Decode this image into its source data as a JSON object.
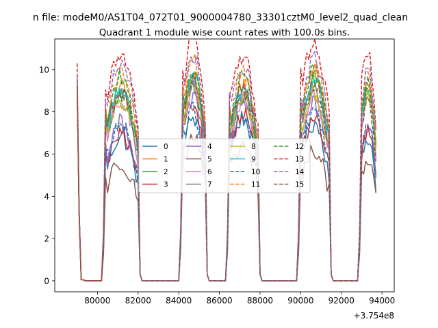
{
  "chart_data": {
    "type": "line",
    "suptitle": "n file: modeM0/AS1T04_072T01_9000004780_33301cztM0_level2_quad_clean",
    "title": "Quadrant 1 module wise count rates with 100.0s bins.",
    "xlabel": "",
    "ylabel": "",
    "x_offset_label": "+3.754e8",
    "xlim": [
      77900,
      94600
    ],
    "ylim": [
      -0.52,
      11.45
    ],
    "xticks": [
      80000,
      82000,
      84000,
      86000,
      88000,
      90000,
      92000,
      94000
    ],
    "xtick_labels": [
      "80000",
      "82000",
      "84000",
      "86000",
      "88000",
      "90000",
      "92000",
      "94000"
    ],
    "yticks": [
      0,
      2,
      4,
      6,
      8,
      10
    ],
    "ytick_labels": [
      "0",
      "2",
      "4",
      "6",
      "8",
      "10"
    ],
    "legend": {
      "position": "center",
      "columns": 4,
      "entries": [
        "0",
        "1",
        "2",
        "3",
        "4",
        "5",
        "6",
        "7",
        "8",
        "9",
        "10",
        "11",
        "12",
        "13",
        "14",
        "15"
      ]
    },
    "segments": [
      {
        "start": 79000,
        "end": 79300,
        "kind": "peak"
      },
      {
        "start": 80300,
        "end": 82000,
        "kind": "plateau",
        "fade_end": 82100
      },
      {
        "start": 84100,
        "end": 85300,
        "kind": "plateau",
        "fade_end": 85400
      },
      {
        "start": 86400,
        "end": 87900,
        "kind": "plateau",
        "fade_end": 88000
      },
      {
        "start": 89900,
        "end": 91400,
        "kind": "plateau",
        "fade_end": 91500
      },
      {
        "start": 92900,
        "end": 93700,
        "kind": "plateau",
        "fade_end": 93700
      }
    ],
    "gap_value": 0,
    "series": [
      {
        "name": "0",
        "color": "#1f77b4",
        "dash": "solid",
        "start_peak": 9.5,
        "levels": [
          6.2,
          7.0,
          7.0,
          6.8,
          6.2
        ]
      },
      {
        "name": "1",
        "color": "#ff7f0e",
        "dash": "solid",
        "start_peak": 9.4,
        "levels": [
          8.3,
          9.0,
          8.4,
          9.0,
          8.6
        ]
      },
      {
        "name": "2",
        "color": "#2ca02c",
        "dash": "solid",
        "start_peak": 9.3,
        "levels": [
          8.0,
          8.5,
          7.8,
          8.6,
          8.2
        ]
      },
      {
        "name": "3",
        "color": "#d62728",
        "dash": "solid",
        "start_peak": 9.2,
        "levels": [
          6.3,
          7.6,
          7.2,
          6.9,
          6.5
        ]
      },
      {
        "name": "4",
        "color": "#9467bd",
        "dash": "solid",
        "start_peak": 9.2,
        "levels": [
          6.8,
          7.9,
          7.7,
          7.6,
          6.8
        ]
      },
      {
        "name": "5",
        "color": "#8c564b",
        "dash": "solid",
        "start_peak": 9.0,
        "levels": [
          5.1,
          6.2,
          5.8,
          5.6,
          5.2
        ]
      },
      {
        "name": "6",
        "color": "#e377c2",
        "dash": "solid",
        "start_peak": 9.2,
        "levels": [
          7.7,
          8.4,
          7.8,
          8.0,
          7.9
        ]
      },
      {
        "name": "7",
        "color": "#7f7f7f",
        "dash": "solid",
        "start_peak": 9.1,
        "levels": [
          8.1,
          8.7,
          8.0,
          8.3,
          8.1
        ]
      },
      {
        "name": "8",
        "color": "#bcbd22",
        "dash": "solid",
        "start_peak": 9.3,
        "levels": [
          7.8,
          8.6,
          7.9,
          8.1,
          7.9
        ]
      },
      {
        "name": "9",
        "color": "#17becf",
        "dash": "solid",
        "start_peak": 9.4,
        "levels": [
          8.2,
          9.0,
          8.3,
          8.7,
          8.4
        ]
      },
      {
        "name": "10",
        "color": "#1f77b4",
        "dash": "dashed",
        "start_peak": 9.5,
        "levels": [
          6.6,
          7.3,
          7.1,
          7.2,
          6.7
        ]
      },
      {
        "name": "11",
        "color": "#ff7f0e",
        "dash": "dashed",
        "start_peak": 9.6,
        "levels": [
          8.9,
          9.5,
          8.9,
          9.2,
          8.9
        ]
      },
      {
        "name": "12",
        "color": "#2ca02c",
        "dash": "dashed",
        "start_peak": 9.4,
        "levels": [
          8.7,
          9.2,
          8.7,
          9.1,
          8.5
        ]
      },
      {
        "name": "13",
        "color": "#d62728",
        "dash": "dashed",
        "start_peak": 10.3,
        "levels": [
          9.8,
          10.4,
          9.7,
          10.3,
          10.0
        ]
      },
      {
        "name": "14",
        "color": "#9467bd",
        "dash": "dashed",
        "start_peak": 9.6,
        "levels": [
          9.3,
          9.7,
          9.2,
          9.5,
          9.3
        ]
      },
      {
        "name": "15",
        "color": "#8c564b",
        "dash": "dashed",
        "start_peak": 9.1,
        "levels": [
          8.1,
          8.7,
          8.2,
          8.4,
          7.8
        ]
      }
    ]
  }
}
